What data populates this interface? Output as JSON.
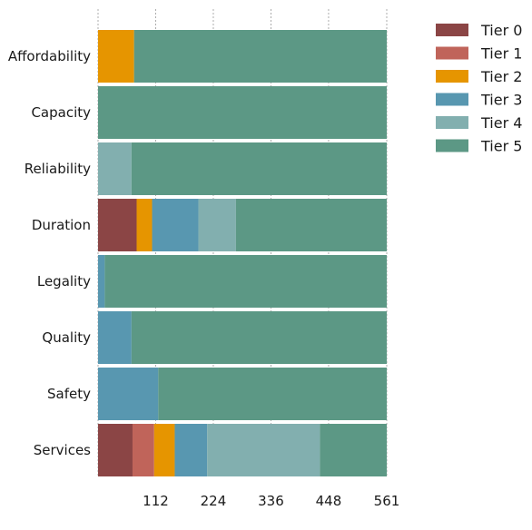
{
  "chart_data": {
    "type": "bar",
    "orientation": "horizontal",
    "stacked": true,
    "categories": [
      "Affordability",
      "Capacity",
      "Reliability",
      "Duration",
      "Legality",
      "Quality",
      "Safety",
      "Services"
    ],
    "series": [
      {
        "name": "Tier 0",
        "color": "#8b4545",
        "values": [
          0,
          0,
          0,
          75,
          0,
          0,
          0,
          67
        ]
      },
      {
        "name": "Tier 1",
        "color": "#c0645a",
        "values": [
          0,
          0,
          0,
          0,
          0,
          0,
          0,
          42
        ]
      },
      {
        "name": "Tier 2",
        "color": "#e69500",
        "values": [
          70,
          0,
          0,
          30,
          0,
          0,
          0,
          40
        ]
      },
      {
        "name": "Tier 3",
        "color": "#5897b0",
        "values": [
          0,
          0,
          0,
          90,
          13,
          65,
          117,
          63
        ]
      },
      {
        "name": "Tier 4",
        "color": "#82afaf",
        "values": [
          0,
          0,
          65,
          73,
          0,
          0,
          0,
          219
        ]
      },
      {
        "name": "Tier 5",
        "color": "#5c9885",
        "values": [
          491,
          561,
          496,
          293,
          548,
          496,
          444,
          130
        ]
      }
    ],
    "xticks": [
      112,
      224,
      336,
      448,
      561
    ],
    "xlim": [
      0,
      561
    ],
    "grid": true,
    "legend_position": "top-right",
    "title": "",
    "xlabel": "",
    "ylabel": ""
  }
}
